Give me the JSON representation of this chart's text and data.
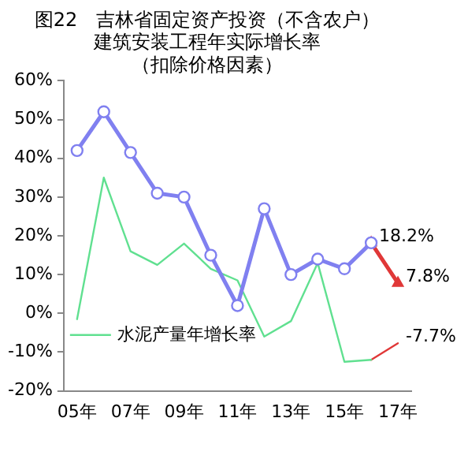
{
  "chart_data": {
    "type": "line",
    "title": "图22　吉林省固定资产投资（不含农户）建筑安装工程年实际增长率（扣除价格因素）",
    "categories": [
      "05年",
      null,
      "07年",
      null,
      "09年",
      null,
      "11年",
      null,
      "13年",
      null,
      "15年",
      null,
      "17年"
    ],
    "series": [
      {
        "color": "#8080f0",
        "marker": "circle",
        "values": [
          42,
          52,
          41.5,
          31,
          30,
          15,
          2,
          27,
          10,
          14,
          11.5,
          18.2,
          null
        ]
      },
      {
        "color": "#e03838",
        "marker": "triangle",
        "values": [
          null,
          null,
          null,
          null,
          null,
          null,
          null,
          null,
          null,
          null,
          null,
          18.2,
          7.8
        ],
        "value_labels": [
          null,
          null,
          null,
          null,
          null,
          null,
          null,
          null,
          null,
          null,
          null,
          "18.2%",
          "7.8%"
        ]
      },
      {
        "name": "水泥产量年增长率",
        "color": "#60e090",
        "values": [
          -1.5,
          35,
          16,
          12.5,
          18,
          11.5,
          8.5,
          -6,
          -2,
          13,
          -12.5,
          -12,
          null
        ]
      },
      {
        "color": "#e03838",
        "values": [
          null,
          null,
          null,
          null,
          null,
          null,
          null,
          null,
          null,
          null,
          null,
          -12,
          -7.7
        ],
        "value_labels": [
          null,
          null,
          null,
          null,
          null,
          null,
          null,
          null,
          null,
          null,
          null,
          null,
          "-7.7%"
        ]
      }
    ],
    "ylim": [
      -20,
      60
    ],
    "yticks": [
      {
        "value": -20,
        "label": "-20%"
      },
      {
        "value": -10,
        "label": "-10%"
      },
      {
        "value": 0,
        "label": "0%"
      },
      {
        "value": 10,
        "label": "10%"
      },
      {
        "value": 20,
        "label": "20%"
      },
      {
        "value": 30,
        "label": "30%"
      },
      {
        "value": 40,
        "label": "40%"
      },
      {
        "value": 50,
        "label": "50%"
      },
      {
        "value": 60,
        "label": "60%"
      }
    ],
    "grid": false,
    "legend": "left"
  }
}
